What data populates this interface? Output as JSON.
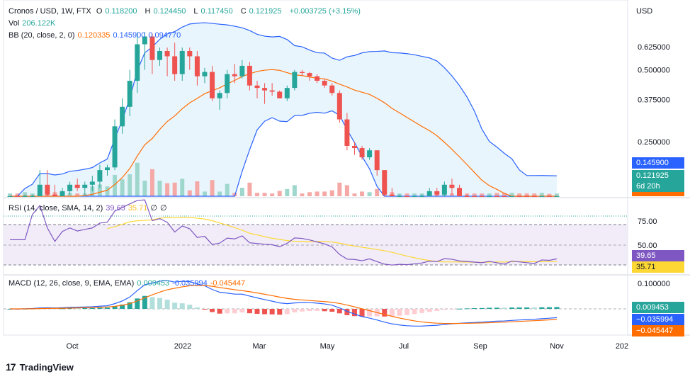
{
  "header": {
    "symbol": "Cronos / USD, 1W, FTX",
    "open_label": "O",
    "open": "0.118200",
    "high_label": "H",
    "high": "0.124450",
    "low_label": "L",
    "low": "0.117450",
    "close_label": "C",
    "close": "0.121925",
    "change": "+0.003725 (+3.15%)",
    "currency": "USD"
  },
  "vol": {
    "label": "Vol",
    "value": "206.122K"
  },
  "bb": {
    "label": "BB (20, close, 2, 0)",
    "basis": "0.120335",
    "upper": "0.145900",
    "lower": "0.094770"
  },
  "rsi": {
    "label": "RSI (14, close, SMA, 14, 2)",
    "rsi": "39.65",
    "sma": "35.71",
    "extra1": "∅",
    "extra2": "∅"
  },
  "macd": {
    "label": "MACD (12, 26, close, 9, EMA, EMA)",
    "hist": "0.009453",
    "macd": "-0.035994",
    "signal": "-0.045447"
  },
  "price_badges": {
    "upper_bb": "0.145900",
    "last": "0.121925",
    "countdown": "6d 20h"
  },
  "rsi_badges": {
    "rsi": "39.65",
    "sma": "35.71"
  },
  "macd_badges": {
    "hist": "0.009453",
    "macd": "−0.035994",
    "signal": "−0.045447"
  },
  "brand": "TradingView",
  "colors": {
    "up": "#26a69a",
    "down": "#ef5350",
    "bb_line": "#2962ff",
    "bb_basis": "#ff6d00",
    "bb_fill": "#e3f2fd",
    "rsi_line": "#7e57c2",
    "rsi_sma": "#fdd835",
    "rsi_bg": "#ede7f6"
  },
  "chart_data": {
    "type": "candlestick",
    "interval": "1W",
    "x_ticks": [
      "Oct",
      "2022",
      "Mar",
      "May",
      "Jul",
      "Sep",
      "Nov",
      "202"
    ],
    "y_ticks": [
      "0.625000",
      "0.500000",
      "0.375000",
      "0.250000"
    ],
    "y_tick_values": [
      0.625,
      0.5,
      0.375,
      0.25
    ],
    "rsi_ticks": [
      "75.00",
      "50.00"
    ],
    "rsi_tick_values": [
      75,
      50
    ],
    "macd_ticks": [
      "0.100000"
    ],
    "macd_tick_values": [
      0.1
    ],
    "candles": [
      [
        0.125,
        0.14,
        0.11,
        0.13
      ],
      [
        0.13,
        0.14,
        0.115,
        0.125
      ],
      [
        0.125,
        0.15,
        0.12,
        0.14
      ],
      [
        0.14,
        0.15,
        0.13,
        0.145
      ],
      [
        0.145,
        0.19,
        0.14,
        0.165
      ],
      [
        0.165,
        0.19,
        0.14,
        0.15
      ],
      [
        0.15,
        0.165,
        0.13,
        0.135
      ],
      [
        0.135,
        0.16,
        0.13,
        0.155
      ],
      [
        0.155,
        0.17,
        0.15,
        0.165
      ],
      [
        0.165,
        0.175,
        0.155,
        0.16
      ],
      [
        0.16,
        0.17,
        0.15,
        0.165
      ],
      [
        0.165,
        0.18,
        0.155,
        0.17
      ],
      [
        0.17,
        0.2,
        0.16,
        0.19
      ],
      [
        0.19,
        0.2,
        0.18,
        0.195
      ],
      [
        0.195,
        0.31,
        0.19,
        0.29
      ],
      [
        0.29,
        0.38,
        0.27,
        0.35
      ],
      [
        0.35,
        0.5,
        0.32,
        0.45
      ],
      [
        0.45,
        0.72,
        0.4,
        0.64
      ],
      [
        0.64,
        0.72,
        0.5,
        0.69
      ],
      [
        0.69,
        0.71,
        0.48,
        0.55
      ],
      [
        0.55,
        0.62,
        0.52,
        0.6
      ],
      [
        0.6,
        0.62,
        0.47,
        0.57
      ],
      [
        0.57,
        0.65,
        0.45,
        0.48
      ],
      [
        0.48,
        0.62,
        0.45,
        0.6
      ],
      [
        0.6,
        0.62,
        0.5,
        0.57
      ],
      [
        0.57,
        0.6,
        0.43,
        0.47
      ],
      [
        0.47,
        0.51,
        0.44,
        0.49
      ],
      [
        0.49,
        0.52,
        0.37,
        0.38
      ],
      [
        0.38,
        0.41,
        0.34,
        0.4
      ],
      [
        0.4,
        0.5,
        0.38,
        0.48
      ],
      [
        0.48,
        0.53,
        0.44,
        0.47
      ],
      [
        0.47,
        0.55,
        0.46,
        0.52
      ],
      [
        0.52,
        0.54,
        0.41,
        0.43
      ],
      [
        0.43,
        0.45,
        0.38,
        0.42
      ],
      [
        0.42,
        0.44,
        0.36,
        0.41
      ],
      [
        0.41,
        0.44,
        0.39,
        0.405
      ],
      [
        0.405,
        0.41,
        0.38,
        0.38
      ],
      [
        0.38,
        0.43,
        0.37,
        0.42
      ],
      [
        0.42,
        0.5,
        0.41,
        0.49
      ],
      [
        0.49,
        0.5,
        0.47,
        0.485
      ],
      [
        0.485,
        0.49,
        0.45,
        0.47
      ],
      [
        0.47,
        0.48,
        0.44,
        0.45
      ],
      [
        0.45,
        0.46,
        0.42,
        0.43
      ],
      [
        0.43,
        0.44,
        0.39,
        0.4
      ],
      [
        0.4,
        0.41,
        0.3,
        0.31
      ],
      [
        0.31,
        0.33,
        0.23,
        0.24
      ],
      [
        0.24,
        0.25,
        0.22,
        0.235
      ],
      [
        0.235,
        0.24,
        0.21,
        0.215
      ],
      [
        0.215,
        0.235,
        0.21,
        0.23
      ],
      [
        0.23,
        0.23,
        0.18,
        0.19
      ],
      [
        0.19,
        0.19,
        0.14,
        0.15
      ],
      [
        0.15,
        0.16,
        0.13,
        0.135
      ],
      [
        0.135,
        0.15,
        0.13,
        0.14
      ],
      [
        0.14,
        0.145,
        0.13,
        0.135
      ],
      [
        0.135,
        0.145,
        0.13,
        0.14
      ],
      [
        0.14,
        0.15,
        0.135,
        0.145
      ],
      [
        0.145,
        0.16,
        0.14,
        0.155
      ],
      [
        0.155,
        0.16,
        0.145,
        0.15
      ],
      [
        0.15,
        0.17,
        0.145,
        0.165
      ],
      [
        0.165,
        0.175,
        0.15,
        0.16
      ],
      [
        0.16,
        0.165,
        0.14,
        0.145
      ],
      [
        0.145,
        0.15,
        0.13,
        0.14
      ],
      [
        0.14,
        0.145,
        0.13,
        0.135
      ],
      [
        0.135,
        0.14,
        0.125,
        0.13
      ],
      [
        0.13,
        0.14,
        0.125,
        0.135
      ],
      [
        0.135,
        0.14,
        0.12,
        0.125
      ],
      [
        0.125,
        0.13,
        0.11,
        0.115
      ],
      [
        0.115,
        0.13,
        0.11,
        0.125
      ],
      [
        0.125,
        0.13,
        0.115,
        0.12
      ],
      [
        0.12,
        0.125,
        0.11,
        0.115
      ],
      [
        0.115,
        0.12,
        0.105,
        0.11
      ],
      [
        0.11,
        0.125,
        0.105,
        0.12
      ],
      [
        0.12,
        0.125,
        0.11,
        0.118
      ],
      [
        0.118,
        0.12445,
        0.11745,
        0.121925
      ]
    ]
  }
}
